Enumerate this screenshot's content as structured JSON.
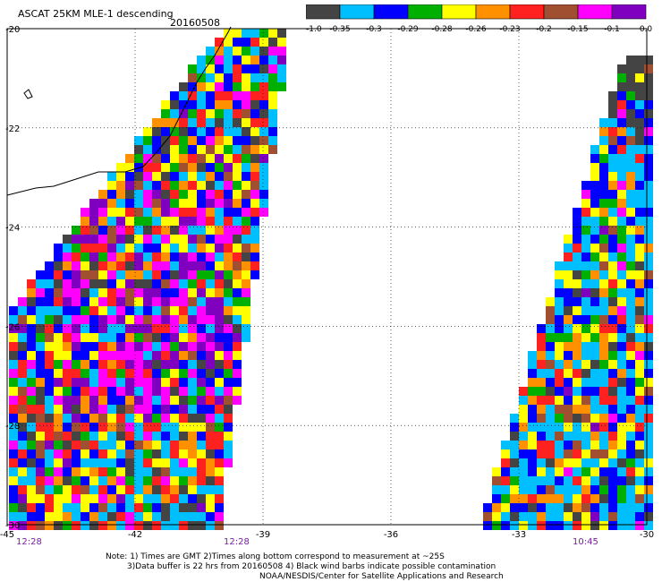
{
  "title": "ASCAT 25KM MLE-1 descending",
  "date": "20160508",
  "colorbar": {
    "labels": [
      "-1.0",
      "-0.35",
      "-0.3",
      "-0.29",
      "-0.28",
      "-0.26",
      "-0.23",
      "-0.2",
      "-0.15",
      "-0.1",
      "0.0"
    ],
    "colors": [
      "#444444",
      "#00bfff",
      "#0000ff",
      "#00b000",
      "#ffff00",
      "#ff9000",
      "#ff2020",
      "#a05030",
      "#ff00ff",
      "#8000c0"
    ]
  },
  "map": {
    "lat_labels": [
      "-20",
      "-22",
      "-24",
      "-26",
      "-28",
      "-30"
    ],
    "lon_labels": [
      "-45",
      "-42",
      "-39",
      "-36",
      "-33",
      "-30"
    ],
    "time_labels": [
      "12:28",
      "12:28",
      "10:45"
    ]
  },
  "notes": {
    "line1": "Note: 1) Times are GMT 2)Times along bottom correspond to measurement at ~25S",
    "line2": "3)Data buffer is 22 hrs from 20160508 4) Black wind barbs indicate possible contamination",
    "line3": "NOAA/NESDIS/Center for Satellite Applications and Research"
  }
}
